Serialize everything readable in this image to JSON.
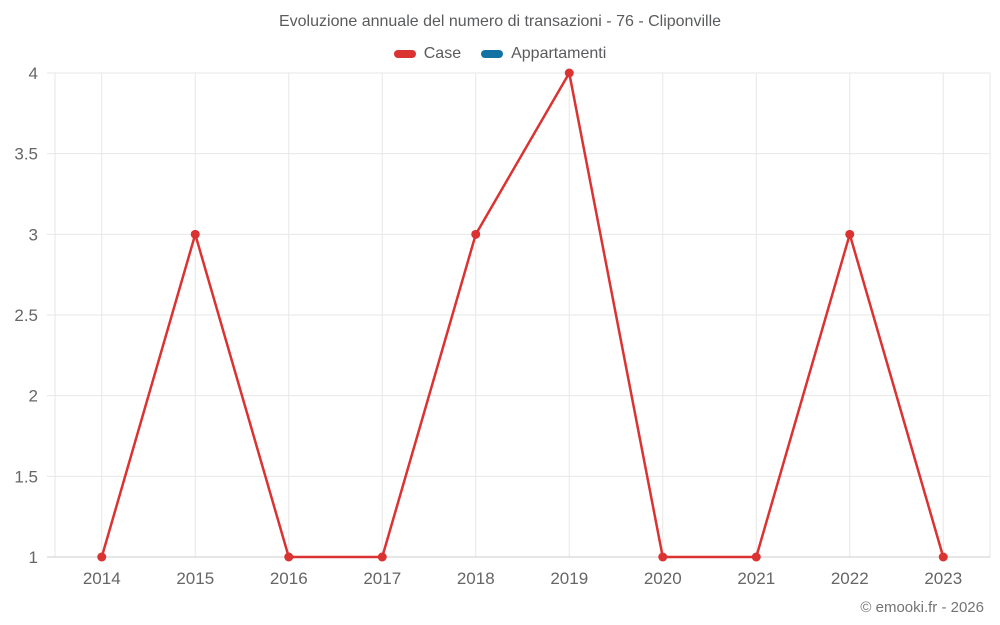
{
  "chart_data": {
    "type": "line",
    "title": "Evoluzione annuale del numero di transazioni - 76 - Cliponville",
    "categories": [
      "2014",
      "2015",
      "2016",
      "2017",
      "2018",
      "2019",
      "2020",
      "2021",
      "2022",
      "2023"
    ],
    "series": [
      {
        "name": "Case",
        "color": "#db3232",
        "values": [
          1,
          3,
          1,
          1,
          3,
          4,
          1,
          1,
          3,
          1
        ]
      },
      {
        "name": "Appartamenti",
        "color": "#1272a3",
        "values": []
      }
    ],
    "xlabel": "",
    "ylabel": "",
    "ylim": [
      1,
      4
    ],
    "yticks": [
      1,
      1.5,
      2,
      2.5,
      3,
      3.5,
      4
    ],
    "grid": true,
    "legend_position": "top",
    "footer": "© emooki.fr - 2026",
    "theme": {
      "grid_color": "#e7e7e7",
      "axis_line_color": "#cccccc",
      "axis_text_color": "#666666",
      "marker_radius": 4.5,
      "line_width": 2.5
    }
  }
}
